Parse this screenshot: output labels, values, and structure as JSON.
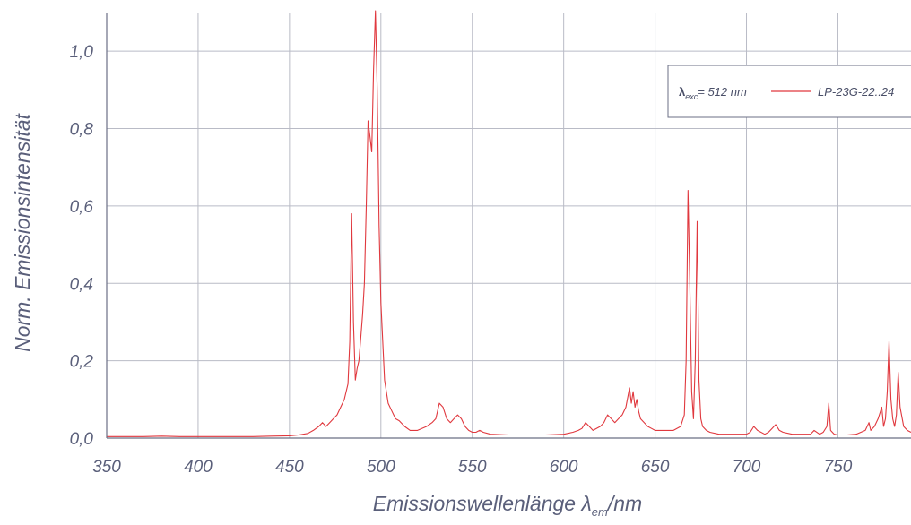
{
  "chart_data": {
    "type": "line",
    "xlabel": "Emissionswellenlänge λ",
    "xlabel_sub": "em",
    "xlabel_unit": "/nm",
    "ylabel": "Norm. Emissionsintensität",
    "xlim": [
      350,
      790
    ],
    "ylim": [
      0,
      1.1
    ],
    "x_ticks": [
      350,
      400,
      450,
      500,
      550,
      600,
      650,
      700,
      750
    ],
    "y_ticks": [
      0.0,
      0.2,
      0.4,
      0.6,
      0.8,
      1.0
    ],
    "y_tick_labels": [
      "0,0",
      "0,2",
      "0,4",
      "0,6",
      "0,8",
      "1,0"
    ],
    "grid": true,
    "legend": {
      "position": "top-right",
      "annotation_main": "λ",
      "annotation_sub": "exc",
      "annotation_rest": "= 512 nm",
      "series_label": "LP-23G-22..24"
    },
    "series": [
      {
        "name": "LP-23G-22..24",
        "color": "#e0383e",
        "x": [
          350,
          360,
          370,
          380,
          390,
          400,
          410,
          420,
          430,
          440,
          450,
          455,
          460,
          463,
          466,
          468,
          470,
          472,
          474,
          476,
          478,
          480,
          482,
          483,
          484,
          485,
          486,
          487,
          488,
          489,
          490,
          491,
          492,
          493,
          494,
          495,
          496,
          497,
          498,
          499,
          500,
          502,
          504,
          506,
          508,
          510,
          513,
          516,
          520,
          525,
          528,
          530,
          532,
          534,
          536,
          538,
          540,
          542,
          544,
          546,
          548,
          550,
          552,
          554,
          556,
          560,
          570,
          580,
          590,
          600,
          605,
          608,
          610,
          612,
          614,
          616,
          620,
          622,
          624,
          626,
          628,
          630,
          632,
          634,
          636,
          637,
          638,
          639,
          640,
          641,
          642,
          644,
          646,
          648,
          650,
          655,
          660,
          664,
          666,
          667,
          668,
          669,
          670,
          671,
          672,
          673,
          674,
          675,
          676,
          678,
          680,
          685,
          690,
          695,
          700,
          702,
          704,
          706,
          710,
          712,
          714,
          716,
          718,
          720,
          725,
          730,
          735,
          737,
          740,
          742,
          744,
          745,
          746,
          748,
          750,
          755,
          760,
          765,
          767,
          768,
          770,
          772,
          774,
          775,
          776,
          777,
          778,
          779,
          780,
          781,
          782,
          783,
          784,
          786,
          788,
          790
        ],
        "y": [
          0.004,
          0.004,
          0.004,
          0.005,
          0.004,
          0.004,
          0.004,
          0.004,
          0.004,
          0.005,
          0.006,
          0.008,
          0.012,
          0.02,
          0.03,
          0.04,
          0.03,
          0.04,
          0.05,
          0.06,
          0.08,
          0.1,
          0.14,
          0.25,
          0.58,
          0.3,
          0.15,
          0.18,
          0.2,
          0.26,
          0.32,
          0.4,
          0.6,
          0.82,
          0.78,
          0.74,
          0.95,
          1.12,
          0.9,
          0.55,
          0.35,
          0.15,
          0.09,
          0.07,
          0.05,
          0.045,
          0.03,
          0.02,
          0.02,
          0.03,
          0.04,
          0.05,
          0.09,
          0.08,
          0.05,
          0.04,
          0.05,
          0.06,
          0.05,
          0.03,
          0.02,
          0.015,
          0.015,
          0.02,
          0.015,
          0.01,
          0.008,
          0.008,
          0.008,
          0.01,
          0.015,
          0.02,
          0.025,
          0.04,
          0.03,
          0.02,
          0.03,
          0.04,
          0.06,
          0.05,
          0.04,
          0.05,
          0.06,
          0.08,
          0.13,
          0.09,
          0.12,
          0.08,
          0.1,
          0.07,
          0.05,
          0.04,
          0.03,
          0.025,
          0.02,
          0.02,
          0.02,
          0.03,
          0.06,
          0.2,
          0.64,
          0.4,
          0.12,
          0.05,
          0.2,
          0.56,
          0.15,
          0.05,
          0.03,
          0.02,
          0.015,
          0.01,
          0.01,
          0.01,
          0.01,
          0.015,
          0.03,
          0.02,
          0.01,
          0.015,
          0.025,
          0.035,
          0.02,
          0.015,
          0.01,
          0.01,
          0.01,
          0.02,
          0.01,
          0.015,
          0.03,
          0.09,
          0.02,
          0.01,
          0.008,
          0.008,
          0.01,
          0.02,
          0.04,
          0.02,
          0.03,
          0.05,
          0.08,
          0.03,
          0.05,
          0.12,
          0.25,
          0.1,
          0.05,
          0.03,
          0.06,
          0.17,
          0.08,
          0.03,
          0.02,
          0.015
        ]
      }
    ]
  }
}
